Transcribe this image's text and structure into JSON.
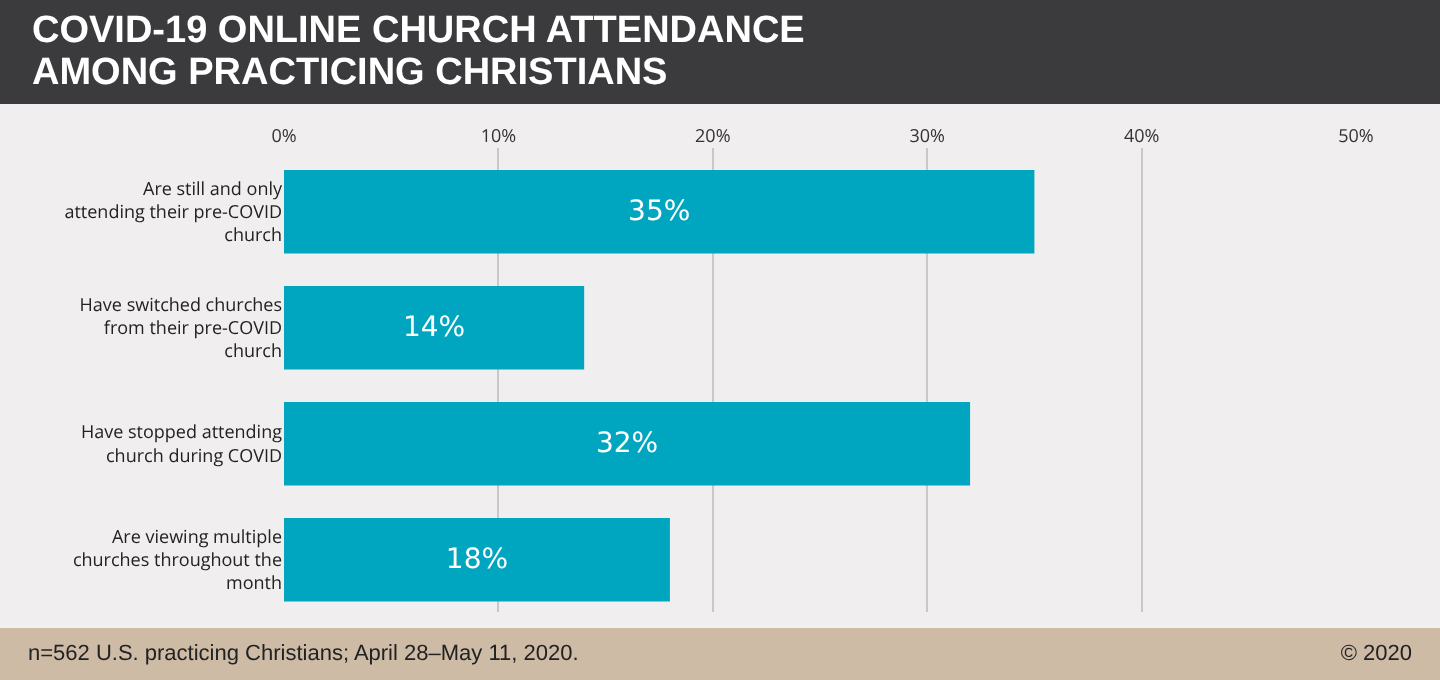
{
  "chart_data": {
    "type": "bar",
    "orientation": "horizontal",
    "title": "COVID-19 ONLINE CHURCH ATTENDANCE AMONG PRACTICING CHRISTIANS",
    "categories": [
      "Are still and only attending their pre-COVID church",
      "Have switched churches from their pre-COVID church",
      "Have stopped attending church during COVID",
      "Are viewing multiple churches throughout the month"
    ],
    "values": [
      35,
      14,
      32,
      18
    ],
    "value_labels": [
      "35%",
      "14%",
      "32%",
      "18%"
    ],
    "color": "#00a6c0",
    "xlim": [
      0,
      50
    ],
    "xticks": [
      {
        "value": 0,
        "label": "0%"
      },
      {
        "value": 10,
        "label": "10%"
      },
      {
        "value": 20,
        "label": "20%"
      },
      {
        "value": 30,
        "label": "30%"
      },
      {
        "value": 40,
        "label": "40%"
      },
      {
        "value": 50,
        "label": "50%"
      }
    ],
    "grid": "x",
    "annotations": [
      "n=562 U.S. practicing Christians; April 28–May 11, 2020.",
      "© 2020"
    ]
  }
}
